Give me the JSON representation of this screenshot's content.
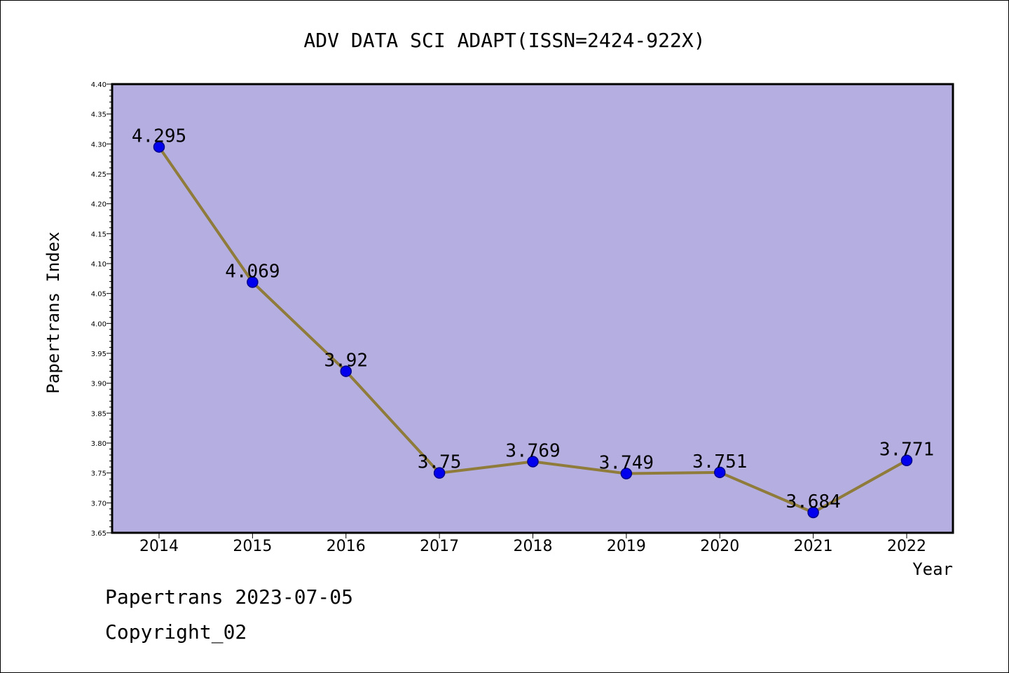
{
  "chart_data": {
    "type": "line",
    "title": "ADV DATA SCI ADAPT(ISSN=2424-922X)",
    "xlabel": "Year",
    "ylabel": "Papertrans Index",
    "x": [
      "2014",
      "2015",
      "2016",
      "2017",
      "2018",
      "2019",
      "2020",
      "2021",
      "2022"
    ],
    "values": [
      4.295,
      4.069,
      3.92,
      3.75,
      3.769,
      3.749,
      3.751,
      3.684,
      3.771
    ],
    "data_labels": [
      "4.295",
      "4.069",
      "3.92",
      "3.75",
      "3.769",
      "3.749",
      "3.751",
      "3.684",
      "3.771"
    ],
    "yticks": [
      "3.65",
      "3.70",
      "3.75",
      "3.80",
      "3.85",
      "3.90",
      "3.95",
      "4.00",
      "4.05",
      "4.10",
      "4.15",
      "4.20",
      "4.25",
      "4.30",
      "4.35",
      "4.40"
    ],
    "ylim": [
      3.65,
      4.4
    ],
    "grid": false,
    "colors": {
      "plot_bg": "#b5aee1",
      "line": "#8f7b3a",
      "marker": "#0000ee",
      "marker_edge": "#00008b"
    }
  },
  "footer": {
    "line1": "Papertrans 2023-07-05",
    "line2": "Copyright_02"
  }
}
